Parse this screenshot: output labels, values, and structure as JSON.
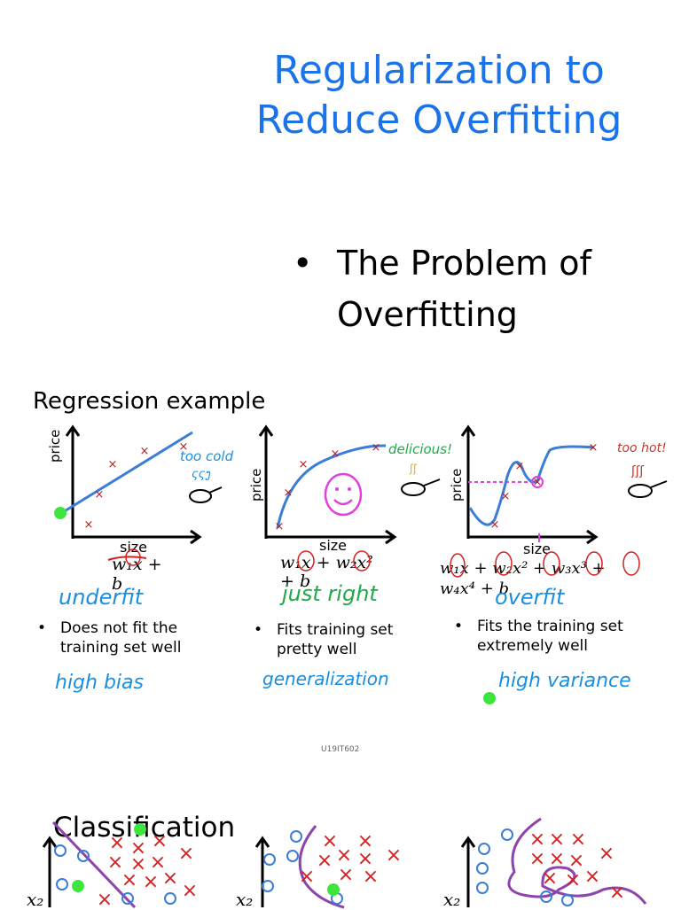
{
  "title": {
    "line1": "Regularization to",
    "line2": "Reduce Overfitting"
  },
  "main_bullet": {
    "symbol": "•",
    "line1": "The Problem of",
    "line2": "Overfitting"
  },
  "regression": {
    "heading": "Regression example",
    "panels": [
      {
        "ylabel": "price",
        "xlabel": "size",
        "equation_line1": "w₁x +",
        "equation_line2": "b",
        "fit_label": "underfit",
        "bullet": "•",
        "desc_line1": "Does not fit the",
        "desc_line2": "training set well",
        "note": "high bias",
        "side_note_line1": "too cold",
        "side_note_line2": "ςςງ"
      },
      {
        "ylabel": "price",
        "xlabel": "size",
        "equation_line1": "w₁x + w₂x²",
        "equation_line2": "+ b",
        "fit_label": "just right",
        "bullet": "•",
        "desc_line1": "Fits training set",
        "desc_line2": "pretty well",
        "note": "generalization",
        "side_note_line1": "delicious!",
        "side_note_line2": "ʃʃ"
      },
      {
        "ylabel": "price",
        "xlabel": "size",
        "equation_line1": "w₁x + w₂x² + w₃x³ +",
        "equation_line2": "w₄x⁴ + b",
        "fit_label": "overfit",
        "bullet": "•",
        "desc_line1": "Fits the training set",
        "desc_line2": "extremely well",
        "note": "high variance",
        "side_note_line1": "too hot!",
        "side_note_line2": "ʃʃʃ"
      }
    ]
  },
  "footer": "U19IT602",
  "classification": {
    "heading": "Classification",
    "axis_label": "x₂"
  },
  "colors": {
    "title": "#1a73e8",
    "curve": "#3b7dd8",
    "marker": "#b22222",
    "handwriting_blue": "#1a8fe0",
    "handwriting_green": "#21a84a",
    "highlight_green": "#3ee53e",
    "circle_red": "#d62020",
    "magenta": "#e040e0"
  }
}
